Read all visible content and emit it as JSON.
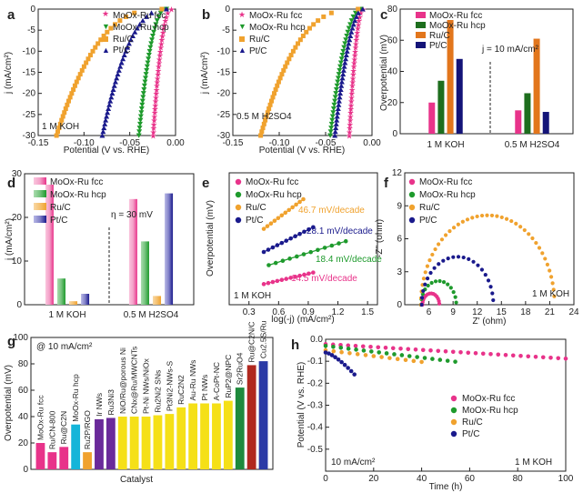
{
  "colors": {
    "fcc": "#e8338a",
    "hcp": "#1e9a2c",
    "ruc": "#f0a22e",
    "ptc": "#1a1a8c"
  },
  "chart_data": [
    {
      "id": "a",
      "type": "line",
      "panel_label": "a",
      "xlabel": "Potential (V vs. RHE)",
      "ylabel": "j (mA/cm²)",
      "xlim": [
        -0.15,
        0.0
      ],
      "ylim": [
        -30,
        0
      ],
      "xticks": [
        "-0.15",
        "-0.10",
        "-0.05",
        "0.00"
      ],
      "yticks": [
        "-30",
        "-25",
        "-20",
        "-15",
        "-10",
        "-5",
        "0"
      ],
      "annotation": "1 M KOH",
      "legend_position": "top-right",
      "series": [
        {
          "name": "MoOx-Ru fcc",
          "onset": -0.005,
          "end": -0.025,
          "power": 2.2
        },
        {
          "name": "MoOx-Ru hcp",
          "onset": -0.01,
          "end": -0.04,
          "power": 2.2
        },
        {
          "name": "Ru/C",
          "onset": -0.015,
          "end": -0.13,
          "power": 2.6
        },
        {
          "name": "Pt/C",
          "onset": -0.01,
          "end": -0.08,
          "power": 2.4
        }
      ]
    },
    {
      "id": "b",
      "type": "line",
      "panel_label": "b",
      "xlabel": "Potential (V vs. RHE)",
      "ylabel": "j (mA/cm²)",
      "xlim": [
        -0.15,
        0.0
      ],
      "ylim": [
        -30,
        0
      ],
      "xticks": [
        "-0.15",
        "-0.10",
        "-0.05",
        "0.00"
      ],
      "yticks": [
        "-30",
        "-25",
        "-20",
        "-15",
        "-10",
        "-5",
        "0"
      ],
      "annotation": "0.5 M H2SO4",
      "legend_position": "top-left",
      "series": [
        {
          "name": "MoOx-Ru fcc",
          "onset": -0.01,
          "end": -0.025,
          "power": 2.0
        },
        {
          "name": "MoOx-Ru hcp",
          "onset": -0.012,
          "end": -0.045,
          "power": 2.0
        },
        {
          "name": "Ru/C",
          "onset": -0.015,
          "end": -0.12,
          "power": 2.7
        },
        {
          "name": "Pt/C",
          "onset": -0.01,
          "end": -0.04,
          "power": 1.9
        }
      ]
    },
    {
      "id": "c",
      "type": "bar",
      "panel_label": "c",
      "ylabel": "Overpotential (mV)",
      "ylim": [
        0,
        80
      ],
      "yticks": [
        "0",
        "20",
        "40",
        "60",
        "80"
      ],
      "categories": [
        "1 M KOH",
        "0.5 M H2SO4"
      ],
      "series": [
        {
          "name": "MoOx-Ru fcc",
          "values": [
            20,
            15
          ]
        },
        {
          "name": "MoOx-Ru hcp",
          "values": [
            34,
            26
          ]
        },
        {
          "name": "Ru/C",
          "values": [
            73,
            61
          ]
        },
        {
          "name": "Pt/C",
          "values": [
            48,
            14
          ]
        }
      ],
      "annotation": "j = 10 mA/cm²"
    },
    {
      "id": "d",
      "type": "bar",
      "panel_label": "d",
      "ylabel": "j (mA/cm²)",
      "ylim": [
        0,
        30
      ],
      "yticks": [
        "0",
        "10",
        "20",
        "30"
      ],
      "categories": [
        "1 M KOH",
        "0.5 M H2SO4"
      ],
      "series": [
        {
          "name": "MoOx-Ru fcc",
          "values": [
            27.5,
            24.2
          ]
        },
        {
          "name": "MoOx-Ru hcp",
          "values": [
            6.0,
            14.5
          ]
        },
        {
          "name": "Ru/C",
          "values": [
            0.8,
            2.0
          ]
        },
        {
          "name": "Pt/C",
          "values": [
            2.5,
            25.5
          ]
        }
      ],
      "annotation": "η = 30 mV"
    },
    {
      "id": "e",
      "type": "scatter",
      "panel_label": "e",
      "xlabel": "log(-j) (mA/cm²)",
      "ylabel": "Overpotential (mV)",
      "xlim": [
        0.1,
        1.6
      ],
      "ylim": [
        0,
        80
      ],
      "xticks": [
        "0.3",
        "0.6",
        "0.9",
        "1.2",
        "1.5"
      ],
      "annotation": "1 M KOH",
      "series": [
        {
          "name": "MoOx-Ru fcc",
          "tafel": "14.5 mV/decade",
          "x_range": [
            0.45,
            0.95
          ],
          "y_range": [
            12.5,
            19.5
          ]
        },
        {
          "name": "MoOx-Ru hcp",
          "tafel": "18.4 mV/decade",
          "x_range": [
            0.5,
            1.28
          ],
          "y_range": [
            24,
            38.5
          ]
        },
        {
          "name": "Ru/C",
          "tafel": "46.7 mV/decade",
          "x_range": [
            0.45,
            0.85
          ],
          "y_range": [
            46,
            64
          ]
        },
        {
          "name": "Pt/C",
          "tafel": "28.1 mV/decade",
          "x_range": [
            0.45,
            0.95
          ],
          "y_range": [
            32,
            47
          ]
        }
      ]
    },
    {
      "id": "f",
      "type": "scatter",
      "panel_label": "f",
      "xlabel": "Z' (ohm)",
      "ylabel": "-Z'' (ohm)",
      "xlim": [
        3,
        24
      ],
      "ylim": [
        0,
        12
      ],
      "xticks": [
        "6",
        "9",
        "12",
        "15",
        "18",
        "21",
        "24"
      ],
      "yticks": [
        "0",
        "3",
        "6",
        "9",
        "12"
      ],
      "annotation": "1 M KOH",
      "series": [
        {
          "name": "MoOx-Ru fcc",
          "r0": 5.2,
          "r1": 7.3
        },
        {
          "name": "MoOx-Ru hcp",
          "r0": 5.0,
          "r1": 9.4
        },
        {
          "name": "Ru/C",
          "r0": 5.0,
          "r1": 21.6
        },
        {
          "name": "Pt/C",
          "r0": 5.1,
          "r1": 14.0
        }
      ]
    },
    {
      "id": "g",
      "type": "bar",
      "panel_label": "g",
      "xlabel": "Catalyst",
      "ylabel": "Overpotential (mV)",
      "ylim": [
        0,
        100
      ],
      "yticks": [
        "0",
        "20",
        "40",
        "60",
        "80",
        "100"
      ],
      "annotation": "@ 10 mA/cm²",
      "categories": [
        "MoOx-Ru fcc",
        "Ru/CN-800",
        "Ru@C2N",
        "MoOx-Ru hcp",
        "Ru2P/RGO",
        "Ir NWs",
        "Ru3Ni3",
        "NiO/Ru@porous Ni",
        "CNx@Ru/MWCNTs",
        "Pt-Ni NWs/NiOx",
        "Ru2Ni2 SNs",
        "Pt3Ni2-NWs-S",
        "RuC2N2",
        "Au-Ru NWs",
        "Pt NWs",
        "A-CoPt-NC",
        "RuP2@NPC",
        "Sr2RuO4",
        "Ru@C2N/C",
        "Cu2.5S/Ru"
      ],
      "values": [
        20,
        13,
        17,
        34,
        13,
        38,
        39,
        40,
        40,
        40,
        41,
        42,
        47,
        50,
        50,
        50,
        52,
        62,
        79,
        82
      ],
      "bar_colors": [
        "#e8338a",
        "#e8338a",
        "#e8338a",
        "#14b5d9",
        "#f0a22e",
        "#6a2a9a",
        "#6a2a9a",
        "#f5e017",
        "#f5e017",
        "#f5e017",
        "#f5e017",
        "#f5e017",
        "#f5e017",
        "#f5e017",
        "#f5e017",
        "#f5e017",
        "#f5e017",
        "#1e8a3c",
        "#b0281f",
        "#2b3aa6"
      ]
    },
    {
      "id": "h",
      "type": "line",
      "panel_label": "h",
      "xlabel": "Time (h)",
      "ylabel": "Potential (V vs. RHE)",
      "xlim": [
        0,
        100
      ],
      "ylim": [
        -0.6,
        0.0
      ],
      "xticks": [
        "0",
        "20",
        "40",
        "60",
        "80",
        "100"
      ],
      "yticks": [
        "-0.5",
        "-0.4",
        "-0.3",
        "-0.2",
        "-0.1",
        "0.0"
      ],
      "annotations": [
        "10 mA/cm²",
        "1 M KOH"
      ],
      "series": [
        {
          "name": "MoOx-Ru fcc",
          "x_end": 100,
          "y_start": -0.022,
          "y_end": -0.088
        },
        {
          "name": "MoOx-Ru hcp",
          "x_end": 54,
          "y_start": -0.03,
          "y_end": -0.102
        },
        {
          "name": "Ru/C",
          "x_end": 40,
          "y_start": -0.05,
          "y_end": -0.103
        },
        {
          "name": "Pt/C",
          "x_end": 12,
          "y_start": -0.06,
          "y_end": -0.16
        }
      ]
    }
  ]
}
